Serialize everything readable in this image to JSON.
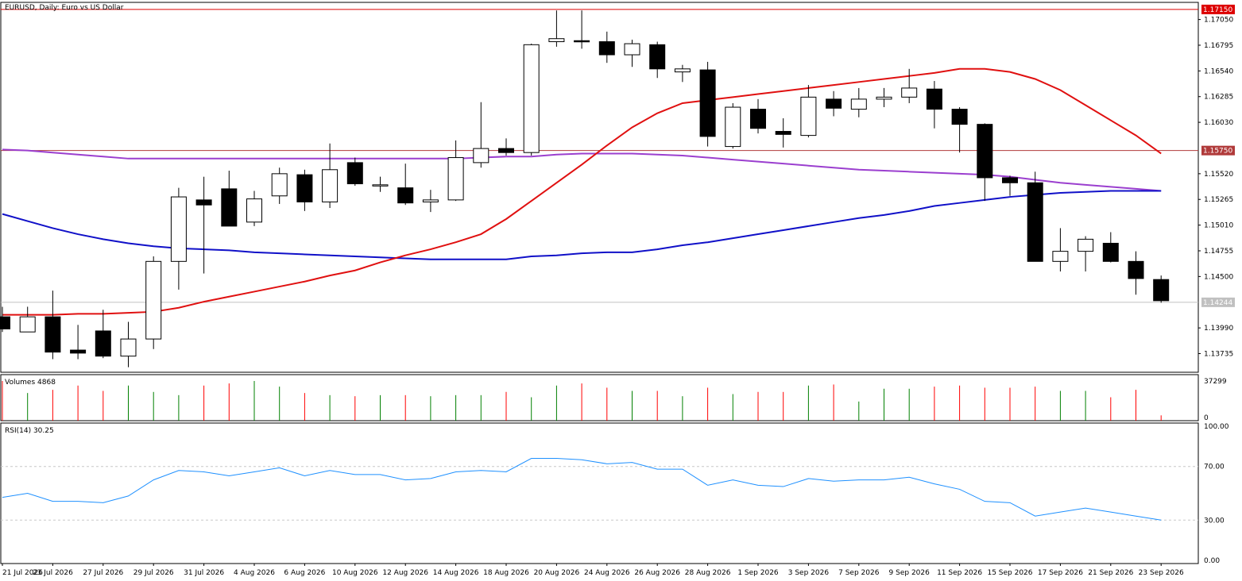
{
  "header": {
    "title": "EURUSD, Daily:  Euro vs US Dollar"
  },
  "volume_panel": {
    "label": "Volumes 4868",
    "ticks": [
      "37299",
      "0"
    ]
  },
  "rsi_panel": {
    "label": "RSI(14) 30.25",
    "ticks": [
      "100.00",
      "70.00",
      "30.00",
      "0.00"
    ]
  },
  "price_axis": {
    "ticks": [
      "1.17050",
      "1.16795",
      "1.16540",
      "1.16285",
      "1.16030",
      "1.15520",
      "1.15265",
      "1.15010",
      "1.14755",
      "1.14500",
      "1.13990",
      "1.13735"
    ]
  },
  "levels": [
    {
      "value": 1.1715,
      "label": "1.17150",
      "color": "#dd0000"
    },
    {
      "value": 1.1575,
      "label": "1.15750",
      "color": "#b03a3a"
    },
    {
      "value": 1.14244,
      "label": "1.14244",
      "color": "#c0c0c0"
    }
  ],
  "x_axis": {
    "labels": [
      "21 Jul 2026",
      "23 Jul 2026",
      "27 Jul 2026",
      "29 Jul 2026",
      "31 Jul 2026",
      "4 Aug 2026",
      "6 Aug 2026",
      "10 Aug 2026",
      "12 Aug 2026",
      "14 Aug 2026",
      "18 Aug 2026",
      "20 Aug 2026",
      "24 Aug 2026",
      "26 Aug 2026",
      "28 Aug 2026",
      "1 Sep 2026",
      "3 Sep 2026",
      "7 Sep 2026",
      "9 Sep 2026",
      "11 Sep 2026",
      "15 Sep 2026",
      "17 Sep 2026",
      "21 Sep 2026",
      "23 Sep 2026"
    ]
  },
  "colors": {
    "up_fill": "#ffffff",
    "down_fill": "#000000",
    "wick": "#000000",
    "vol_up": "#008000",
    "vol_down": "#ff0000",
    "ma_red": "#e01010",
    "ma_blue": "#1010c8",
    "ma_purple": "#9b3fcf",
    "rsi_line": "#1e90ff"
  },
  "chart_data": {
    "type": "candlestick",
    "title": "EURUSD, Daily:  Euro vs US Dollar",
    "ylim": [
      1.1355,
      1.1722
    ],
    "candles": [
      {
        "o": 1.141,
        "h": 1.142,
        "l": 1.1395,
        "c": 1.1398
      },
      {
        "o": 1.1395,
        "h": 1.142,
        "l": 1.1395,
        "c": 1.141
      },
      {
        "o": 1.141,
        "h": 1.1436,
        "l": 1.1368,
        "c": 1.1375
      },
      {
        "o": 1.1377,
        "h": 1.1402,
        "l": 1.1368,
        "c": 1.1374
      },
      {
        "o": 1.1396,
        "h": 1.1417,
        "l": 1.1369,
        "c": 1.1371
      },
      {
        "o": 1.1371,
        "h": 1.1405,
        "l": 1.136,
        "c": 1.1388
      },
      {
        "o": 1.1388,
        "h": 1.147,
        "l": 1.1378,
        "c": 1.1465
      },
      {
        "o": 1.1465,
        "h": 1.1538,
        "l": 1.1437,
        "c": 1.1529
      },
      {
        "o": 1.1526,
        "h": 1.1549,
        "l": 1.1453,
        "c": 1.1521
      },
      {
        "o": 1.1537,
        "h": 1.1555,
        "l": 1.1501,
        "c": 1.15
      },
      {
        "o": 1.1504,
        "h": 1.1535,
        "l": 1.15,
        "c": 1.1527
      },
      {
        "o": 1.153,
        "h": 1.1558,
        "l": 1.1522,
        "c": 1.1552
      },
      {
        "o": 1.1551,
        "h": 1.1556,
        "l": 1.1515,
        "c": 1.1524
      },
      {
        "o": 1.1524,
        "h": 1.1582,
        "l": 1.1518,
        "c": 1.1556
      },
      {
        "o": 1.1563,
        "h": 1.1568,
        "l": 1.154,
        "c": 1.1542
      },
      {
        "o": 1.1541,
        "h": 1.1549,
        "l": 1.1534,
        "c": 1.1541
      },
      {
        "o": 1.1538,
        "h": 1.1562,
        "l": 1.1521,
        "c": 1.1523
      },
      {
        "o": 1.1524,
        "h": 1.1536,
        "l": 1.1514,
        "c": 1.1526
      },
      {
        "o": 1.1526,
        "h": 1.1585,
        "l": 1.1525,
        "c": 1.1568
      },
      {
        "o": 1.1563,
        "h": 1.1623,
        "l": 1.1558,
        "c": 1.1577
      },
      {
        "o": 1.1577,
        "h": 1.1587,
        "l": 1.157,
        "c": 1.1573
      },
      {
        "o": 1.1573,
        "h": 1.1681,
        "l": 1.157,
        "c": 1.168
      },
      {
        "o": 1.1683,
        "h": 1.1714,
        "l": 1.1678,
        "c": 1.1686
      },
      {
        "o": 1.1684,
        "h": 1.1714,
        "l": 1.1676,
        "c": 1.1683
      },
      {
        "o": 1.1683,
        "h": 1.1693,
        "l": 1.1662,
        "c": 1.167
      },
      {
        "o": 1.167,
        "h": 1.1685,
        "l": 1.1658,
        "c": 1.1681
      },
      {
        "o": 1.168,
        "h": 1.1683,
        "l": 1.1647,
        "c": 1.1656
      },
      {
        "o": 1.1653,
        "h": 1.166,
        "l": 1.1643,
        "c": 1.1656
      },
      {
        "o": 1.1655,
        "h": 1.1663,
        "l": 1.1579,
        "c": 1.1589
      },
      {
        "o": 1.1579,
        "h": 1.1622,
        "l": 1.1577,
        "c": 1.1618
      },
      {
        "o": 1.1616,
        "h": 1.1626,
        "l": 1.1592,
        "c": 1.1597
      },
      {
        "o": 1.1594,
        "h": 1.1607,
        "l": 1.1578,
        "c": 1.1591
      },
      {
        "o": 1.159,
        "h": 1.164,
        "l": 1.1588,
        "c": 1.1628
      },
      {
        "o": 1.1626,
        "h": 1.1634,
        "l": 1.1609,
        "c": 1.1617
      },
      {
        "o": 1.1616,
        "h": 1.1637,
        "l": 1.1608,
        "c": 1.1626
      },
      {
        "o": 1.1626,
        "h": 1.1637,
        "l": 1.1618,
        "c": 1.1628
      },
      {
        "o": 1.1628,
        "h": 1.1656,
        "l": 1.1622,
        "c": 1.1637
      },
      {
        "o": 1.1636,
        "h": 1.1644,
        "l": 1.1597,
        "c": 1.1616
      },
      {
        "o": 1.1616,
        "h": 1.1618,
        "l": 1.1573,
        "c": 1.1601
      },
      {
        "o": 1.1601,
        "h": 1.1602,
        "l": 1.1525,
        "c": 1.1548
      },
      {
        "o": 1.1548,
        "h": 1.155,
        "l": 1.153,
        "c": 1.1543
      },
      {
        "o": 1.1543,
        "h": 1.1554,
        "l": 1.1465,
        "c": 1.1465
      },
      {
        "o": 1.1465,
        "h": 1.1498,
        "l": 1.1455,
        "c": 1.1475
      },
      {
        "o": 1.1475,
        "h": 1.149,
        "l": 1.1455,
        "c": 1.1487
      },
      {
        "o": 1.1483,
        "h": 1.1494,
        "l": 1.1464,
        "c": 1.1465
      },
      {
        "o": 1.1465,
        "h": 1.1475,
        "l": 1.1432,
        "c": 1.1448
      },
      {
        "o": 1.1447,
        "h": 1.1451,
        "l": 1.1424,
        "c": 1.1426
      }
    ],
    "ma_red": [
      1.1412,
      1.1412,
      1.1412,
      1.1413,
      1.1413,
      1.1414,
      1.1415,
      1.1419,
      1.1425,
      1.143,
      1.1435,
      1.144,
      1.1445,
      1.1451,
      1.1456,
      1.1464,
      1.1471,
      1.1477,
      1.1484,
      1.1492,
      1.1507,
      1.1525,
      1.1543,
      1.1561,
      1.158,
      1.1598,
      1.1612,
      1.1622,
      1.1625,
      1.1628,
      1.1631,
      1.1634,
      1.1637,
      1.164,
      1.1643,
      1.1646,
      1.1649,
      1.1652,
      1.1656,
      1.1656,
      1.1653,
      1.1646,
      1.1635,
      1.162,
      1.1605,
      1.159,
      1.1572
    ],
    "ma_blue": [
      1.1512,
      1.1505,
      1.1498,
      1.1492,
      1.1487,
      1.1483,
      1.148,
      1.1478,
      1.1477,
      1.1476,
      1.1474,
      1.1473,
      1.1472,
      1.1471,
      1.147,
      1.1469,
      1.1468,
      1.1467,
      1.1467,
      1.1467,
      1.1467,
      1.147,
      1.1471,
      1.1473,
      1.1474,
      1.1474,
      1.1477,
      1.1481,
      1.1484,
      1.1488,
      1.1492,
      1.1496,
      1.15,
      1.1504,
      1.1508,
      1.1511,
      1.1515,
      1.152,
      1.1523,
      1.1526,
      1.1529,
      1.1531,
      1.1533,
      1.1534,
      1.1535,
      1.1535,
      1.1535
    ],
    "ma_purple": [
      1.1576,
      1.1575,
      1.1573,
      1.1571,
      1.1569,
      1.1567,
      1.1567,
      1.1567,
      1.1567,
      1.1567,
      1.1567,
      1.1567,
      1.1567,
      1.1567,
      1.1567,
      1.1567,
      1.1567,
      1.1567,
      1.1567,
      1.1568,
      1.1569,
      1.1569,
      1.1571,
      1.1572,
      1.1572,
      1.1572,
      1.1571,
      1.157,
      1.1568,
      1.1566,
      1.1564,
      1.1562,
      1.156,
      1.1558,
      1.1556,
      1.1555,
      1.1554,
      1.1553,
      1.1552,
      1.1551,
      1.1549,
      1.1546,
      1.1543,
      1.1541,
      1.1539,
      1.1537,
      1.1535
    ],
    "volumes": [
      37299,
      26000,
      29000,
      33000,
      28000,
      33000,
      27000,
      24000,
      33000,
      35000,
      37299,
      32000,
      26000,
      24000,
      23000,
      24000,
      24000,
      23000,
      24000,
      24000,
      27000,
      22000,
      33000,
      35000,
      31000,
      28000,
      28000,
      23000,
      31000,
      25000,
      27000,
      27000,
      33000,
      34000,
      18000,
      30000,
      30000,
      32000,
      33000,
      31000,
      31000,
      32000,
      28000,
      28000,
      22000,
      29000,
      5000
    ],
    "volume_max": 37299,
    "rsi": [
      47,
      50,
      44,
      44,
      43,
      48,
      60,
      67,
      66,
      63,
      66,
      69,
      63,
      67,
      64,
      64,
      60,
      61,
      66,
      67,
      66,
      76,
      76,
      75,
      72,
      73,
      68,
      68,
      56,
      60,
      56,
      55,
      61,
      59,
      60,
      60,
      62,
      57,
      53,
      44,
      43,
      33,
      36,
      39,
      36,
      33,
      30
    ]
  }
}
